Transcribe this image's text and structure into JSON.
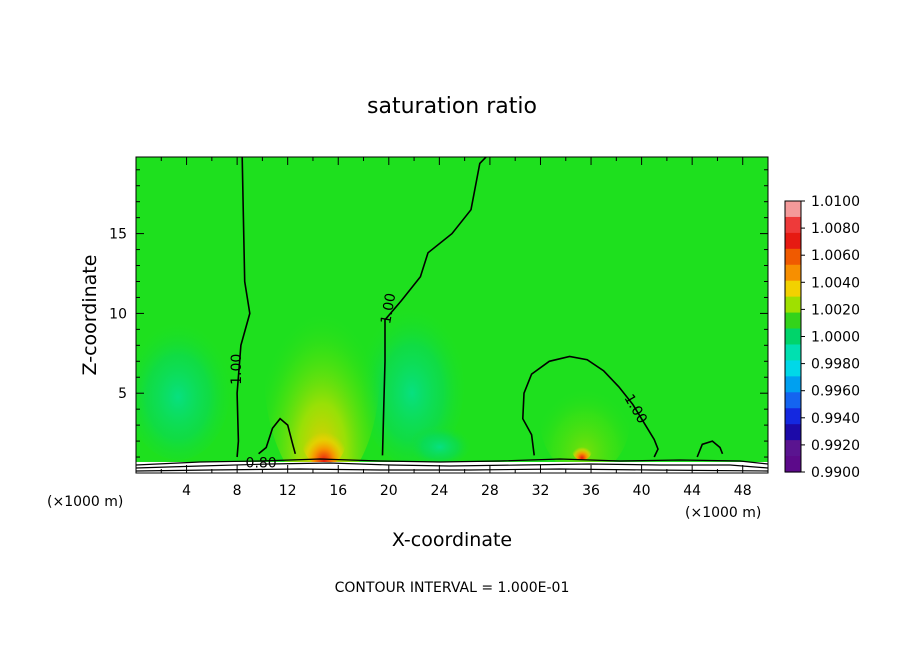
{
  "chart_data": {
    "type": "heatmap",
    "title": "saturation ratio",
    "xlabel": "X-coordinate",
    "ylabel": "Z-coordinate",
    "x_unit_left": "(×1000 m)",
    "x_unit_right": "(×1000 m)",
    "footer": "CONTOUR INTERVAL = 1.000E-01",
    "xlim": [
      0,
      50
    ],
    "ylim": [
      0,
      19.8
    ],
    "x_ticks": [
      4,
      8,
      12,
      16,
      20,
      24,
      28,
      32,
      36,
      40,
      44,
      48
    ],
    "y_ticks": [
      5,
      10,
      15
    ],
    "contour_labels": [
      {
        "text": "1.00",
        "x": 8.0,
        "y": 6.5,
        "rotate": -90
      },
      {
        "text": "1.00",
        "x": 20.0,
        "y": 10.3,
        "rotate": -80
      },
      {
        "text": "1.00",
        "x": 39.5,
        "y": 4.0,
        "rotate": 60
      },
      {
        "text": "0.80",
        "x": 9.9,
        "y": 0.6,
        "rotate": 0
      }
    ],
    "contours": [
      {
        "level": 1.0,
        "points": [
          [
            8.4,
            19.8
          ],
          [
            8.5,
            16
          ],
          [
            8.6,
            12
          ],
          [
            9.0,
            10
          ],
          [
            8.3,
            8
          ],
          [
            8.0,
            5
          ],
          [
            8.1,
            2
          ],
          [
            8.0,
            1.0
          ]
        ]
      },
      {
        "level": 1.0,
        "points": [
          [
            9.7,
            1.2
          ],
          [
            10.3,
            1.6
          ],
          [
            10.8,
            2.8
          ],
          [
            11.4,
            3.4
          ],
          [
            12.0,
            3.0
          ],
          [
            12.4,
            1.8
          ],
          [
            12.6,
            1.2
          ]
        ]
      },
      {
        "level": 1.0,
        "points": [
          [
            27.7,
            19.8
          ],
          [
            27.2,
            19.4
          ],
          [
            26.5,
            16.5
          ],
          [
            25.0,
            15
          ],
          [
            23.1,
            13.8
          ],
          [
            22.5,
            12.3
          ],
          [
            21.0,
            10.8
          ],
          [
            19.7,
            9.6
          ],
          [
            19.7,
            7
          ],
          [
            19.6,
            4
          ],
          [
            19.5,
            1.1
          ]
        ]
      },
      {
        "level": 1.0,
        "points": [
          [
            31.5,
            1.1
          ],
          [
            31.3,
            2.4
          ],
          [
            30.6,
            3.4
          ],
          [
            30.7,
            5.0
          ],
          [
            31.3,
            6.2
          ],
          [
            32.7,
            7.0
          ],
          [
            34.3,
            7.3
          ],
          [
            35.7,
            7.1
          ],
          [
            37.0,
            6.4
          ],
          [
            38.2,
            5.4
          ],
          [
            39.3,
            4.3
          ],
          [
            40.3,
            3.0
          ],
          [
            41.0,
            2.1
          ],
          [
            41.3,
            1.5
          ],
          [
            41.0,
            1.0
          ]
        ]
      },
      {
        "level": 1.0,
        "points": [
          [
            44.4,
            1.0
          ],
          [
            44.8,
            1.8
          ],
          [
            45.6,
            2.0
          ],
          [
            46.2,
            1.6
          ],
          [
            46.4,
            1.2
          ]
        ]
      }
    ],
    "colorbar": {
      "labels": [
        "1.0100",
        "1.0080",
        "1.0060",
        "1.0040",
        "1.0020",
        "1.0000",
        "0.9980",
        "0.9960",
        "0.9940",
        "0.9920",
        "0.9900"
      ],
      "colors": [
        "#f49a9a",
        "#ee3a3a",
        "#e61a12",
        "#f05a00",
        "#f78f00",
        "#f2d100",
        "#9fe000",
        "#33d31a",
        "#00d46a",
        "#00e0b0",
        "#00d8e8",
        "#00a0f0",
        "#1464f0",
        "#1428e0",
        "#1c0aa8",
        "#5a1490",
        "#5c0a8a"
      ]
    },
    "fields": {
      "background": "#1ee01e",
      "high_saturation": [
        "#f2d100",
        "#f78f00",
        "#e61a12"
      ],
      "low_saturation": [
        "#00d46a",
        "#00e0b0"
      ]
    }
  }
}
